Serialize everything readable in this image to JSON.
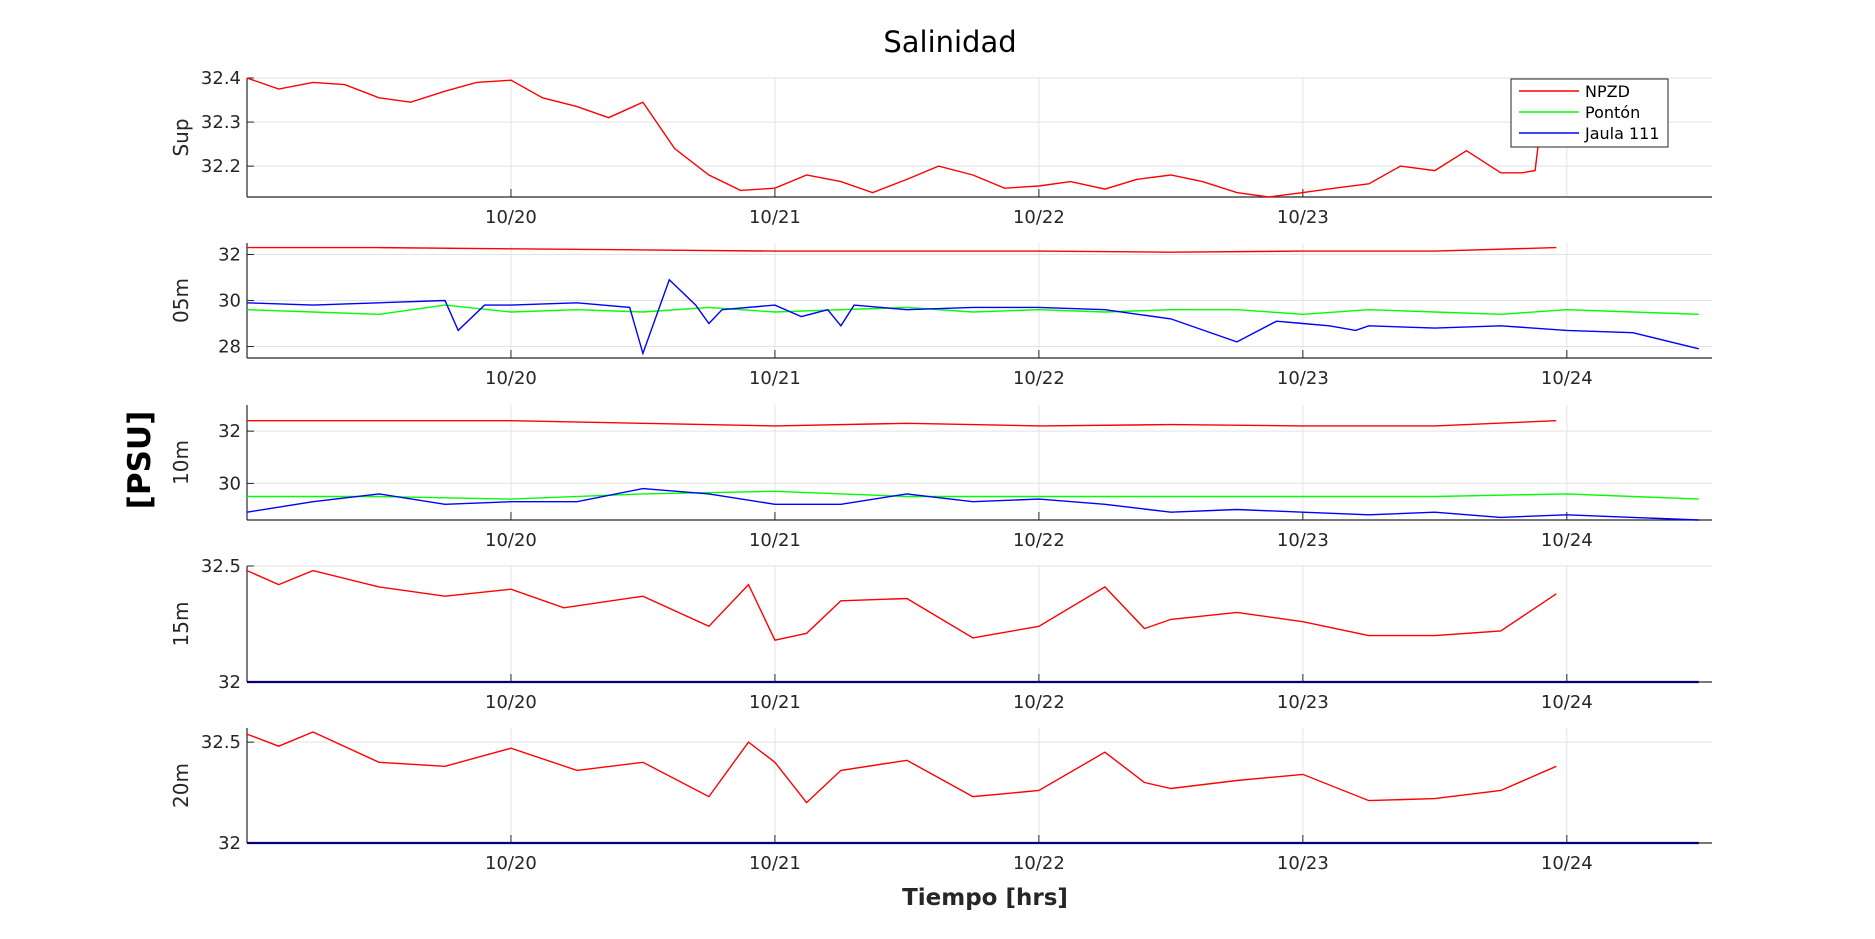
{
  "chart_data": {
    "type": "line",
    "title": "Salinidad",
    "xlabel": "Tiempo [hrs]",
    "ylabel": "[PSU]",
    "grid": true,
    "x_unit": "date",
    "xlim": [
      "10/19 00:00",
      "10/24 13:00"
    ],
    "x_ticks": [
      "10/20",
      "10/21",
      "10/22",
      "10/23",
      "10/24"
    ],
    "legend": {
      "placement": "top-right",
      "entries": [
        {
          "name": "NPZD",
          "color": "#ff0000"
        },
        {
          "name": "Pontón",
          "color": "#00ff00"
        },
        {
          "name": "Jaula 111",
          "color": "#0000ff"
        }
      ]
    },
    "panels": [
      {
        "label": "Sup",
        "ylim": [
          32.13,
          32.4
        ],
        "yticks": [
          32.2,
          32.3,
          32.4
        ],
        "x_ticks_shown": [
          "10/20",
          "10/21",
          "10/22",
          "10/23"
        ],
        "series": [
          {
            "name": "NPZD",
            "color": "#ff0000",
            "x": [
              0,
              0.12,
              0.25,
              0.37,
              0.5,
              0.62,
              0.75,
              0.87,
              1,
              1.12,
              1.25,
              1.37,
              1.5,
              1.62,
              1.75,
              1.87,
              2,
              2.12,
              2.25,
              2.37,
              2.5,
              2.62,
              2.75,
              2.87,
              3,
              3.12,
              3.25,
              3.37,
              3.5,
              3.62,
              3.75,
              3.87,
              4,
              4.12,
              4.25,
              4.37,
              4.5,
              4.62,
              4.75,
              4.83,
              4.88,
              4.92,
              4.96
            ],
            "values": [
              32.4,
              32.375,
              32.39,
              32.385,
              32.355,
              32.345,
              32.37,
              32.39,
              32.395,
              32.355,
              32.335,
              32.31,
              32.345,
              32.24,
              32.18,
              32.145,
              32.15,
              32.18,
              32.165,
              32.14,
              32.17,
              32.2,
              32.18,
              32.15,
              32.155,
              32.165,
              32.148,
              32.17,
              32.18,
              32.165,
              32.14,
              32.13,
              32.14,
              32.15,
              32.16,
              32.2,
              32.19,
              32.235,
              32.185,
              32.185,
              32.19,
              32.39,
              32.35
            ]
          }
        ]
      },
      {
        "label": "05m",
        "ylim": [
          27.5,
          32.5
        ],
        "yticks": [
          28,
          30,
          32
        ],
        "x_ticks_shown": [
          "10/20",
          "10/21",
          "10/22",
          "10/23",
          "10/24"
        ],
        "series": [
          {
            "name": "NPZD",
            "color": "#ff0000",
            "x": [
              0,
              0.5,
              1,
              1.5,
              2,
              2.5,
              3,
              3.5,
              4,
              4.5,
              4.96
            ],
            "values": [
              32.3,
              32.3,
              32.25,
              32.2,
              32.15,
              32.15,
              32.15,
              32.1,
              32.15,
              32.15,
              32.3
            ]
          },
          {
            "name": "Pontón",
            "color": "#00ff00",
            "x": [
              0,
              0.25,
              0.5,
              0.75,
              1,
              1.25,
              1.5,
              1.75,
              2,
              2.25,
              2.5,
              2.75,
              3,
              3.25,
              3.5,
              3.75,
              4,
              4.25,
              4.5,
              4.75,
              5,
              5.25,
              5.5
            ],
            "values": [
              29.6,
              29.5,
              29.4,
              29.8,
              29.5,
              29.6,
              29.5,
              29.7,
              29.5,
              29.6,
              29.7,
              29.5,
              29.6,
              29.5,
              29.6,
              29.6,
              29.4,
              29.6,
              29.5,
              29.4,
              29.6,
              29.5,
              29.4
            ]
          },
          {
            "name": "Jaula 111",
            "color": "#0000ff",
            "x": [
              0,
              0.25,
              0.5,
              0.75,
              0.8,
              0.9,
              1,
              1.25,
              1.45,
              1.5,
              1.6,
              1.7,
              1.75,
              1.8,
              2,
              2.1,
              2.2,
              2.25,
              2.3,
              2.5,
              2.75,
              3,
              3.25,
              3.5,
              3.75,
              3.9,
              4,
              4.1,
              4.2,
              4.25,
              4.5,
              4.75,
              5,
              5.25,
              5.5
            ],
            "values": [
              29.9,
              29.8,
              29.9,
              30.0,
              28.7,
              29.8,
              29.8,
              29.9,
              29.7,
              27.7,
              30.9,
              29.8,
              29.0,
              29.6,
              29.8,
              29.3,
              29.6,
              28.9,
              29.8,
              29.6,
              29.7,
              29.7,
              29.6,
              29.2,
              28.2,
              29.1,
              29.0,
              28.9,
              28.7,
              28.9,
              28.8,
              28.9,
              28.7,
              28.6,
              27.9
            ]
          }
        ]
      },
      {
        "label": "10m",
        "ylim": [
          28.6,
          33.0
        ],
        "yticks": [
          30,
          32
        ],
        "x_ticks_shown": [
          "10/20",
          "10/21",
          "10/22",
          "10/23",
          "10/24"
        ],
        "series": [
          {
            "name": "NPZD",
            "color": "#ff0000",
            "x": [
              0,
              0.5,
              1,
              1.5,
              2,
              2.5,
              3,
              3.5,
              4,
              4.5,
              4.96
            ],
            "values": [
              32.4,
              32.4,
              32.4,
              32.3,
              32.2,
              32.3,
              32.2,
              32.25,
              32.2,
              32.2,
              32.4
            ]
          },
          {
            "name": "Pontón",
            "color": "#00ff00",
            "x": [
              0,
              0.5,
              1,
              1.5,
              2,
              2.5,
              3,
              3.5,
              4,
              4.5,
              5,
              5.5
            ],
            "values": [
              29.5,
              29.5,
              29.4,
              29.6,
              29.7,
              29.5,
              29.5,
              29.5,
              29.5,
              29.5,
              29.6,
              29.4
            ]
          },
          {
            "name": "Jaula 111",
            "color": "#0000ff",
            "x": [
              0,
              0.25,
              0.5,
              0.75,
              1,
              1.25,
              1.5,
              1.75,
              2,
              2.25,
              2.5,
              2.75,
              3,
              3.25,
              3.5,
              3.75,
              4,
              4.25,
              4.5,
              4.75,
              5,
              5.25,
              5.5
            ],
            "values": [
              28.9,
              29.3,
              29.6,
              29.2,
              29.3,
              29.3,
              29.8,
              29.6,
              29.2,
              29.2,
              29.6,
              29.3,
              29.4,
              29.2,
              28.9,
              29.0,
              28.9,
              28.8,
              28.9,
              28.7,
              28.8,
              28.7,
              28.6
            ]
          }
        ]
      },
      {
        "label": "15m",
        "ylim": [
          32,
          32.5
        ],
        "yticks": [
          32,
          32.5
        ],
        "x_ticks_shown": [
          "10/20",
          "10/21",
          "10/22",
          "10/23",
          "10/24"
        ],
        "series": [
          {
            "name": "NPZD",
            "color": "#ff0000",
            "x": [
              0,
              0.12,
              0.25,
              0.5,
              0.75,
              1,
              1.2,
              1.5,
              1.75,
              1.9,
              2,
              2.12,
              2.25,
              2.5,
              2.75,
              3,
              3.25,
              3.4,
              3.5,
              3.75,
              4,
              4.25,
              4.5,
              4.75,
              4.96
            ],
            "values": [
              32.48,
              32.42,
              32.48,
              32.41,
              32.37,
              32.4,
              32.32,
              32.37,
              32.24,
              32.42,
              32.18,
              32.21,
              32.35,
              32.36,
              32.19,
              32.24,
              32.41,
              32.23,
              32.27,
              32.3,
              32.26,
              32.2,
              32.2,
              32.22,
              32.38
            ]
          },
          {
            "name": "Jaula 111",
            "color": "#00007f",
            "x": [
              0,
              5.5
            ],
            "values": [
              32,
              32
            ]
          }
        ]
      },
      {
        "label": "20m",
        "ylim": [
          32,
          32.57
        ],
        "yticks": [
          32,
          32.5
        ],
        "x_ticks_shown": [
          "10/20",
          "10/21",
          "10/22",
          "10/23",
          "10/24"
        ],
        "series": [
          {
            "name": "NPZD",
            "color": "#ff0000",
            "x": [
              0,
              0.12,
              0.25,
              0.5,
              0.75,
              1,
              1.25,
              1.5,
              1.75,
              1.9,
              2,
              2.12,
              2.25,
              2.5,
              2.75,
              3,
              3.25,
              3.4,
              3.5,
              3.75,
              4,
              4.25,
              4.5,
              4.75,
              4.96
            ],
            "values": [
              32.54,
              32.48,
              32.55,
              32.4,
              32.38,
              32.47,
              32.36,
              32.4,
              32.23,
              32.5,
              32.4,
              32.2,
              32.36,
              32.41,
              32.23,
              32.26,
              32.45,
              32.3,
              32.27,
              32.31,
              32.34,
              32.21,
              32.22,
              32.26,
              32.38
            ]
          },
          {
            "name": "Jaula 111",
            "color": "#00007f",
            "x": [
              0,
              5.5
            ],
            "values": [
              32,
              32
            ]
          }
        ]
      }
    ]
  }
}
